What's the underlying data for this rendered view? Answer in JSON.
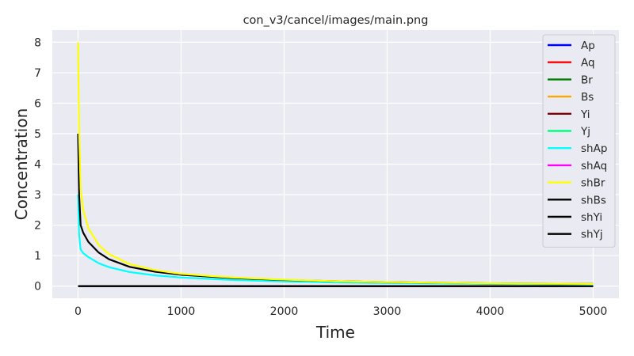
{
  "chart_data": {
    "type": "line",
    "title": "con_v3/cancel/images/main.png",
    "xlabel": "Time",
    "ylabel": "Concentration",
    "xlim": [
      -250,
      5250
    ],
    "ylim": [
      -0.4,
      8.4
    ],
    "xticks": [
      "0",
      "1000",
      "2000",
      "3000",
      "4000",
      "5000"
    ],
    "yticks": [
      "0",
      "1",
      "2",
      "3",
      "4",
      "5",
      "6",
      "7",
      "8"
    ],
    "grid": true,
    "background": "#eaeaf2",
    "legend_position": "upper-right",
    "x": [
      0,
      10,
      25,
      50,
      100,
      200,
      300,
      500,
      750,
      1000,
      1500,
      2000,
      2500,
      3000,
      4000,
      5000
    ],
    "series": [
      {
        "name": "Ap",
        "color": "#0000ff",
        "values": [
          0,
          0,
          0,
          0,
          0,
          0,
          0,
          0,
          0,
          0,
          0,
          0,
          0,
          0,
          0,
          0
        ]
      },
      {
        "name": "Aq",
        "color": "#ff0000",
        "values": [
          0,
          0,
          0,
          0,
          0,
          0,
          0,
          0,
          0,
          0,
          0,
          0,
          0,
          0,
          0,
          0
        ]
      },
      {
        "name": "Br",
        "color": "#008000",
        "values": [
          0,
          0,
          0,
          0,
          0,
          0,
          0,
          0,
          0,
          0,
          0,
          0,
          0,
          0,
          0,
          0
        ]
      },
      {
        "name": "Bs",
        "color": "#ffa500",
        "values": [
          0,
          0,
          0,
          0,
          0,
          0,
          0,
          0,
          0,
          0,
          0,
          0,
          0,
          0,
          0,
          0
        ]
      },
      {
        "name": "Yi",
        "color": "#800000",
        "values": [
          0,
          0,
          0,
          0,
          0,
          0,
          0,
          0,
          0,
          0,
          0,
          0,
          0,
          0,
          0,
          0
        ]
      },
      {
        "name": "Yj",
        "color": "#00ff7f",
        "values": [
          0,
          0,
          0,
          0,
          0,
          0,
          0,
          0,
          0,
          0,
          0,
          0,
          0,
          0,
          0,
          0
        ]
      },
      {
        "name": "shAp",
        "color": "#00ffff",
        "values": [
          3.0,
          1.7,
          1.2,
          1.08,
          0.95,
          0.75,
          0.62,
          0.46,
          0.35,
          0.28,
          0.2,
          0.15,
          0.12,
          0.1,
          0.07,
          0.05
        ]
      },
      {
        "name": "shAq",
        "color": "#ff00ff",
        "values": [
          0,
          0,
          0,
          0,
          0,
          0,
          0,
          0,
          0,
          0,
          0,
          0,
          0,
          0,
          0,
          0
        ]
      },
      {
        "name": "shBr",
        "color": "#ffff00",
        "values": [
          8.0,
          5.0,
          3.2,
          2.5,
          1.9,
          1.35,
          1.05,
          0.72,
          0.52,
          0.4,
          0.28,
          0.21,
          0.16,
          0.13,
          0.09,
          0.07
        ]
      },
      {
        "name": "shBs",
        "color": "#000000",
        "values": [
          0,
          0,
          0,
          0,
          0,
          0,
          0,
          0,
          0,
          0,
          0,
          0,
          0,
          0,
          0,
          0
        ]
      },
      {
        "name": "shYi",
        "color": "#000000",
        "values": [
          5.0,
          3.0,
          2.0,
          1.75,
          1.45,
          1.1,
          0.88,
          0.63,
          0.47,
          0.37,
          0.26,
          0.2,
          0.16,
          0.13,
          0.09,
          0.07
        ]
      },
      {
        "name": "shYj",
        "color": "#000000",
        "values": [
          0,
          0,
          0,
          0,
          0,
          0,
          0,
          0,
          0,
          0,
          0,
          0,
          0,
          0,
          0,
          0
        ]
      }
    ]
  }
}
